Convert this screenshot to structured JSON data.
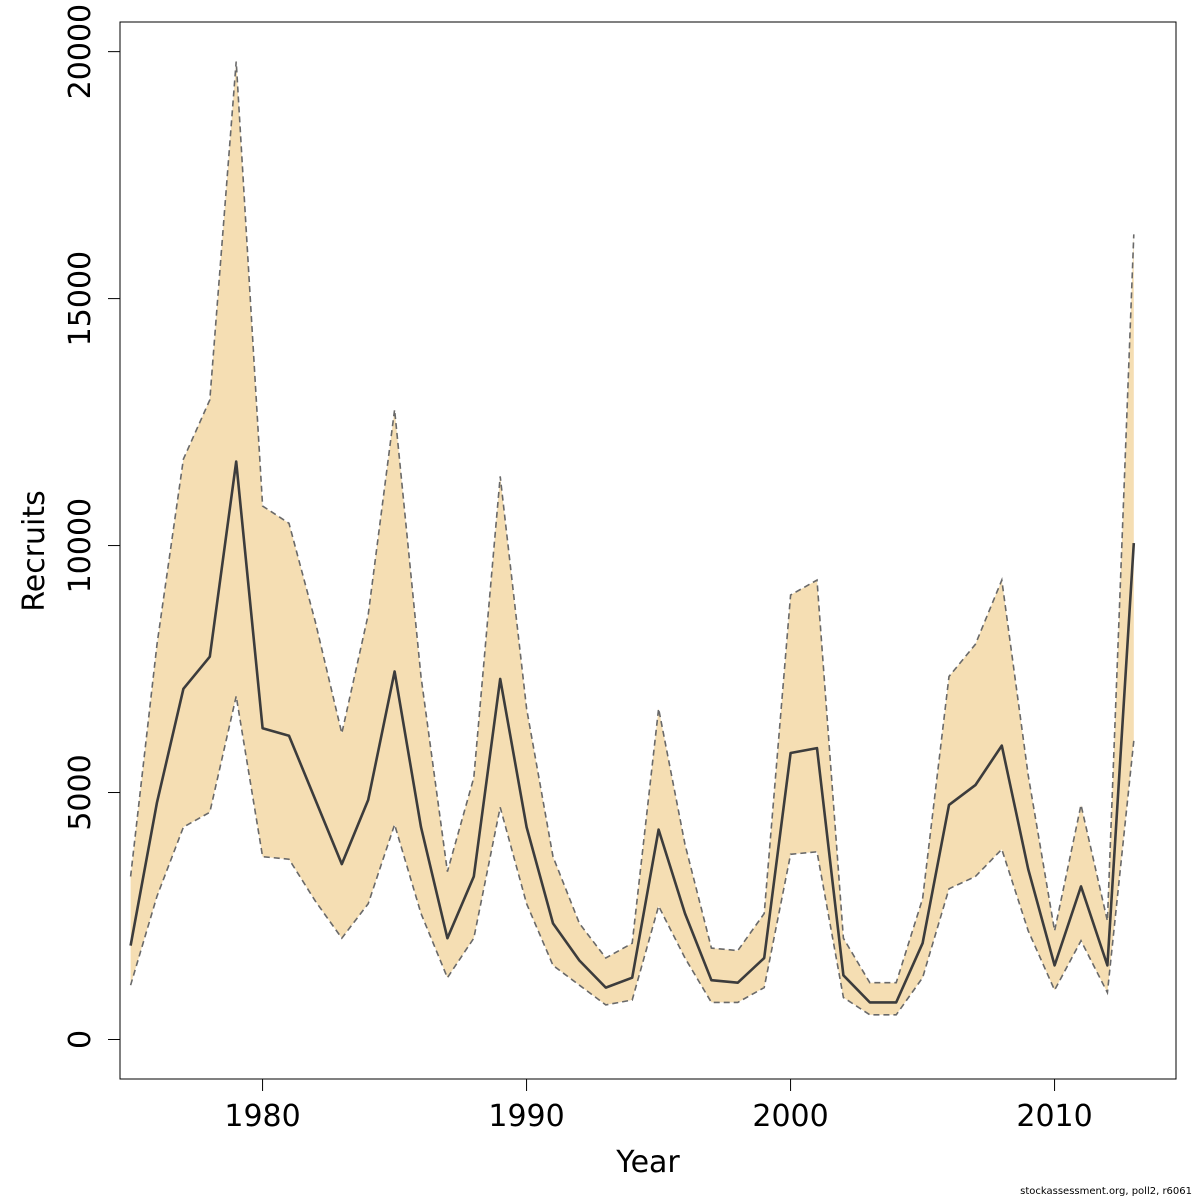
{
  "chart_data": {
    "type": "line",
    "title": "",
    "xlabel": "Year",
    "ylabel": "Recruits",
    "xlim": [
      1974.6,
      2014.6
    ],
    "ylim": [
      -800,
      20600
    ],
    "x_ticks": [
      1980,
      1990,
      2000,
      2010
    ],
    "y_ticks": [
      0,
      5000,
      10000,
      15000,
      20000
    ],
    "grid": false,
    "legend": "none",
    "x": [
      1975,
      1976,
      1977,
      1978,
      1979,
      1980,
      1981,
      1982,
      1983,
      1984,
      1985,
      1986,
      1987,
      1988,
      1989,
      1990,
      1991,
      1992,
      1993,
      1994,
      1995,
      1996,
      1997,
      1998,
      1999,
      2000,
      2001,
      2002,
      2003,
      2004,
      2005,
      2006,
      2007,
      2008,
      2009,
      2010,
      2011,
      2012,
      2013
    ],
    "series": [
      {
        "name": "",
        "values": [
          1900,
          4800,
          7100,
          7750,
          11700,
          6300,
          6150,
          4850,
          3550,
          4850,
          7450,
          4300,
          2050,
          3300,
          7300,
          4300,
          2350,
          1600,
          1050,
          1250,
          4250,
          2550,
          1200,
          1150,
          1650,
          5800,
          5900,
          1300,
          750,
          750,
          1950,
          4750,
          5150,
          5950,
          3450,
          1500,
          3100,
          1500,
          10050
        ],
        "lower": [
          1100,
          2900,
          4300,
          4600,
          6950,
          3700,
          3650,
          2800,
          2050,
          2750,
          4350,
          2550,
          1250,
          2050,
          4700,
          2750,
          1500,
          1100,
          700,
          800,
          2700,
          1650,
          750,
          750,
          1050,
          3750,
          3800,
          850,
          500,
          500,
          1250,
          3050,
          3300,
          3850,
          2200,
          1000,
          2000,
          950,
          6050
        ],
        "upper": [
          3300,
          8000,
          11750,
          12950,
          19800,
          10800,
          10450,
          8450,
          6200,
          8600,
          12750,
          7350,
          3400,
          5300,
          11400,
          6700,
          3700,
          2350,
          1650,
          1950,
          6700,
          3950,
          1850,
          1800,
          2550,
          9000,
          9300,
          2050,
          1150,
          1150,
          2850,
          7350,
          8000,
          9300,
          5350,
          2200,
          4750,
          2400,
          16300
        ]
      }
    ],
    "colors": {
      "band_fill": "#f5deb3",
      "band_edge": "#696969",
      "line": "#3c3c3c",
      "axis": "#000000"
    }
  },
  "footer": {
    "credit": "stockassessment.org, poll2, r6061"
  }
}
